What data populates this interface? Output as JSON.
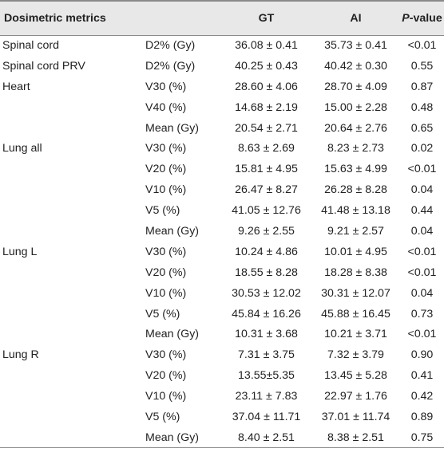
{
  "table": {
    "headers": [
      "Dosimetric metrics",
      "GT",
      "AI",
      "P",
      "-value"
    ],
    "rows": [
      [
        "Spinal cord",
        "D2% (Gy)",
        "36.08 ± 0.41",
        "35.73 ± 0.41",
        "<0.01"
      ],
      [
        "Spinal cord PRV",
        "D2% (Gy)",
        "40.25 ± 0.43",
        "40.42 ± 0.30",
        "0.55"
      ],
      [
        "Heart",
        "V30 (%)",
        "28.60 ± 4.06",
        "28.70 ± 4.09",
        "0.87"
      ],
      [
        "",
        "V40 (%)",
        "14.68 ± 2.19",
        "15.00 ± 2.28",
        "0.48"
      ],
      [
        "",
        "Mean (Gy)",
        "20.54 ± 2.71",
        "20.64 ± 2.76",
        "0.65"
      ],
      [
        "Lung all",
        "V30 (%)",
        "8.63 ± 2.69",
        "8.23 ± 2.73",
        "0.02"
      ],
      [
        "",
        "V20 (%)",
        "15.81 ± 4.95",
        "15.63 ± 4.99",
        "<0.01"
      ],
      [
        "",
        "V10 (%)",
        "26.47 ± 8.27",
        "26.28 ± 8.28",
        "0.04"
      ],
      [
        "",
        "V5 (%)",
        "41.05 ± 12.76",
        "41.48 ± 13.18",
        "0.44"
      ],
      [
        "",
        "Mean (Gy)",
        "9.26 ± 2.55",
        "9.21 ± 2.57",
        "0.04"
      ],
      [
        "Lung L",
        "V30 (%)",
        "10.24 ± 4.86",
        "10.01 ± 4.95",
        "<0.01"
      ],
      [
        "",
        "V20 (%)",
        "18.55 ± 8.28",
        "18.28 ± 8.38",
        "<0.01"
      ],
      [
        "",
        "V10 (%)",
        "30.53 ± 12.02",
        "30.31 ± 12.07",
        "0.04"
      ],
      [
        "",
        "V5 (%)",
        "45.84 ± 16.26",
        "45.88 ± 16.45",
        "0.73"
      ],
      [
        "",
        "Mean (Gy)",
        "10.31 ± 3.68",
        "10.21 ± 3.71",
        "<0.01"
      ],
      [
        "Lung R",
        "V30 (%)",
        "7.31 ± 3.75",
        "7.32 ± 3.79",
        "0.90"
      ],
      [
        "",
        "V20 (%)",
        "13.55±5.35",
        "13.45 ± 5.28",
        "0.41"
      ],
      [
        "",
        "V10 (%)",
        "23.11 ± 7.83",
        "22.97 ± 1.76",
        "0.42"
      ],
      [
        "",
        "V5 (%)",
        "37.04 ± 11.71",
        "37.01 ± 11.74",
        "0.89"
      ],
      [
        "",
        "Mean (Gy)",
        "8.40 ± 2.51",
        "8.38 ± 2.51",
        "0.75"
      ]
    ]
  }
}
